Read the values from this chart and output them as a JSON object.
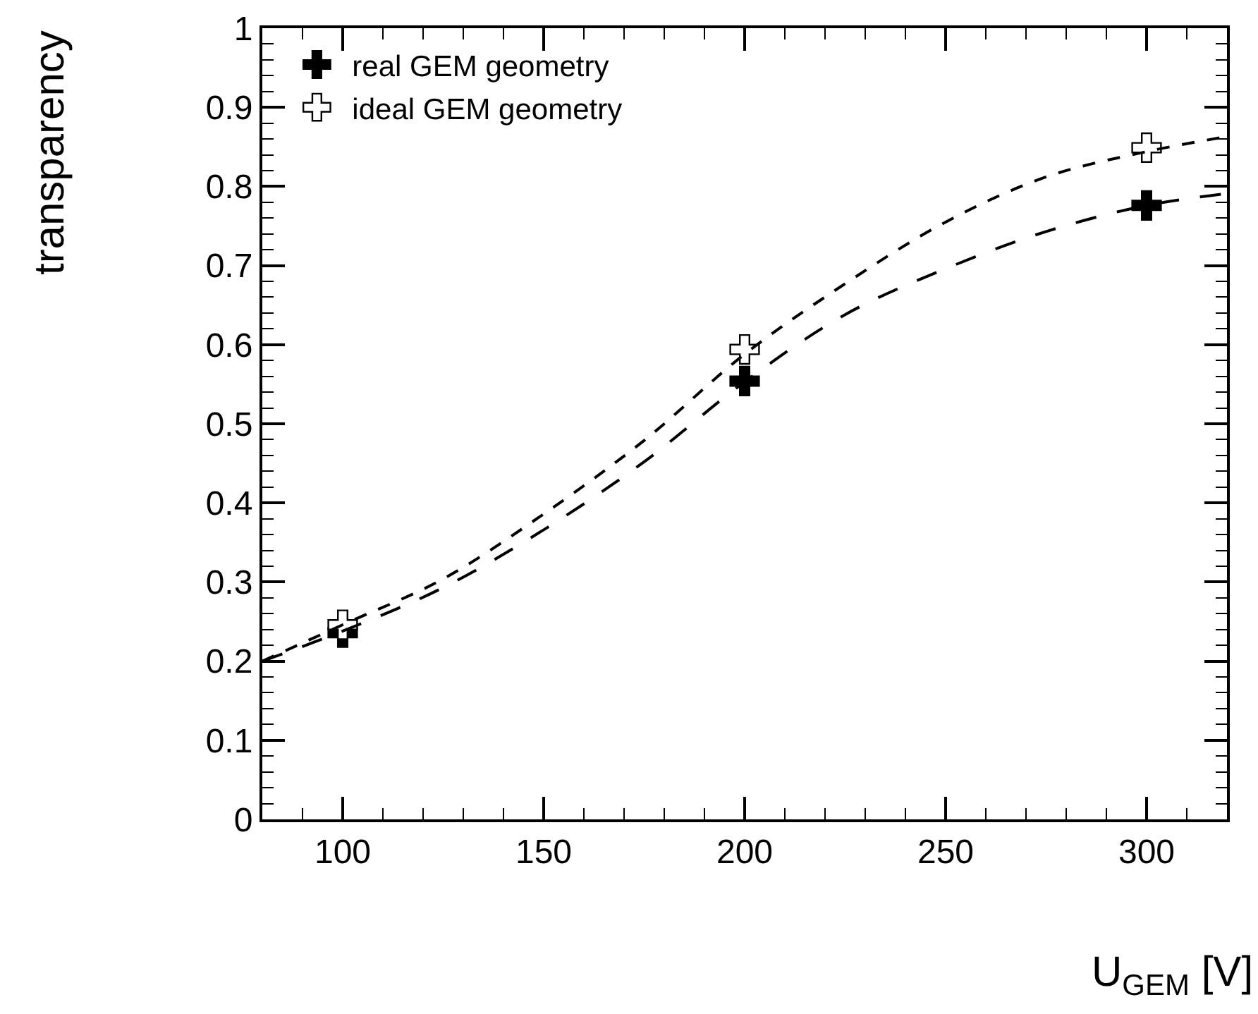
{
  "chart_data": {
    "type": "scatter",
    "xlabel": "U$_{GEM}$ [V]",
    "ylabel": "transparency",
    "x": [
      100,
      200,
      300
    ],
    "series": [
      {
        "name": "real GEM geometry",
        "marker": "cross",
        "color": "#000000",
        "values": [
          0.236,
          0.554,
          0.776
        ]
      },
      {
        "name": "ideal GEM geometry",
        "marker": "cross",
        "color": "#ffffff",
        "values": [
          0.246,
          0.594,
          0.849
        ]
      },
      {
        "type": "line",
        "line_style": "dashed",
        "color": "#000000",
        "x": [
          80,
          100,
          125,
          150,
          175,
          200,
          225,
          250,
          275,
          300,
          320
        ],
        "values": [
          0.2,
          0.238,
          0.293,
          0.366,
          0.452,
          0.553,
          0.638,
          0.696,
          0.743,
          0.776,
          0.791
        ]
      },
      {
        "type": "line",
        "line_style": "dotted",
        "color": "#000000",
        "x": [
          80,
          100,
          125,
          150,
          175,
          200,
          225,
          250,
          275,
          300,
          320
        ],
        "values": [
          0.2,
          0.246,
          0.304,
          0.386,
          0.479,
          0.588,
          0.677,
          0.755,
          0.812,
          0.844,
          0.863
        ]
      }
    ],
    "xlim": [
      80,
      320
    ],
    "xticks": [
      100,
      150,
      200,
      250,
      300
    ],
    "ylim": [
      0,
      1
    ],
    "yticks": [
      0,
      0.1,
      0.2,
      0.3,
      0.4,
      0.5,
      0.6,
      0.7,
      0.8,
      0.9,
      1
    ],
    "grid": false,
    "legend": "top left"
  }
}
